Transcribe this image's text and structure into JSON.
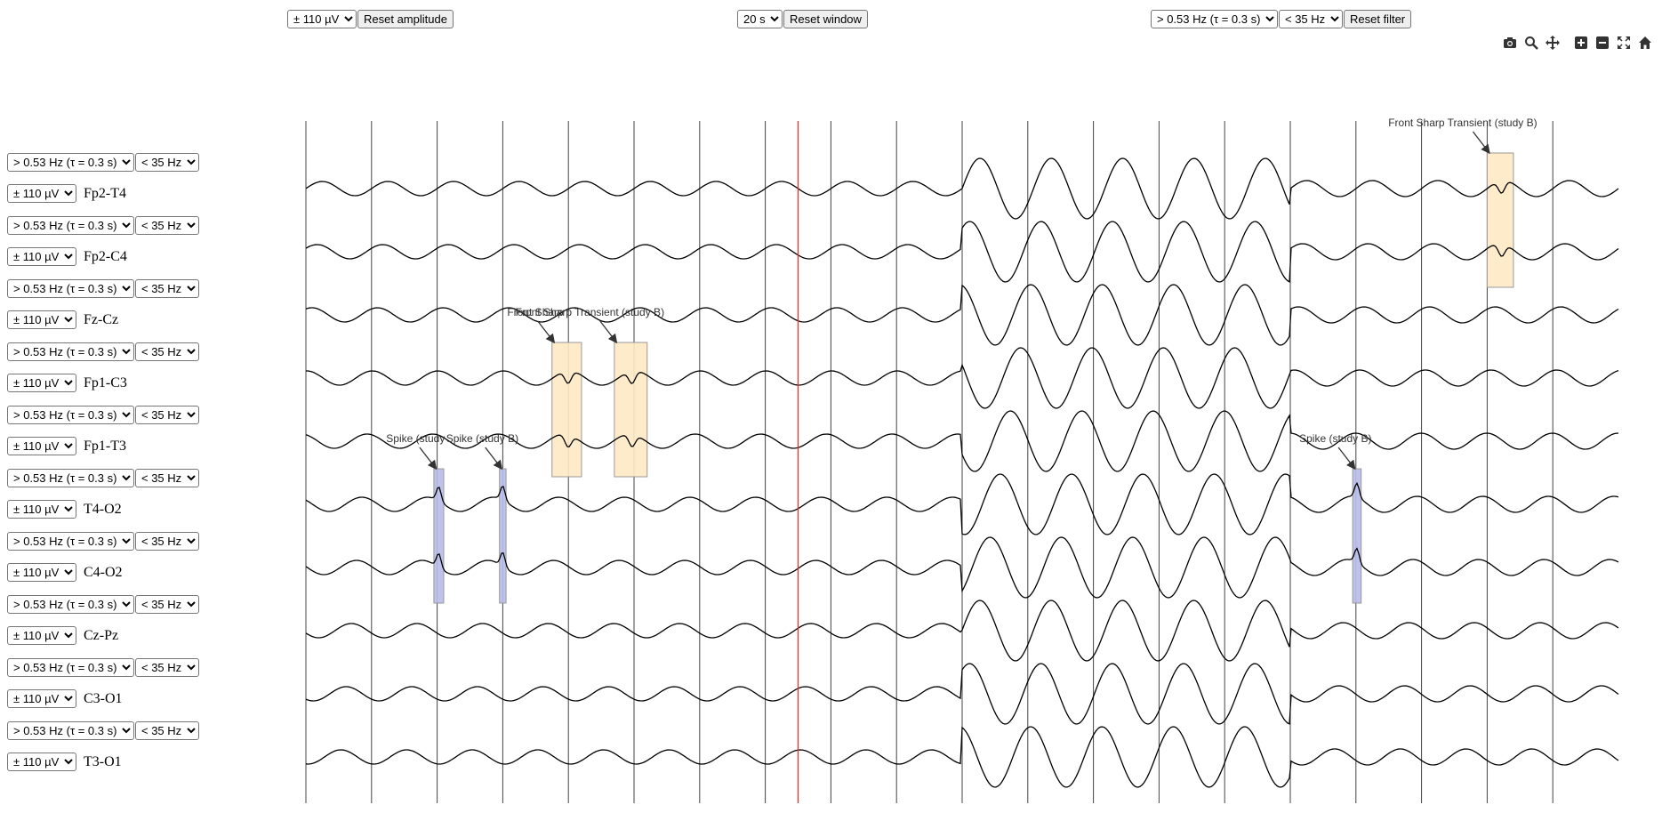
{
  "top_controls": {
    "amplitude": {
      "selected": "± 110 µV",
      "reset_label": "Reset amplitude"
    },
    "window": {
      "selected": "20 s",
      "reset_label": "Reset window"
    },
    "filter": {
      "highpass": "> 0.53 Hz (τ = 0.3 s)",
      "lowpass": "< 35 Hz",
      "reset_label": "Reset filter"
    }
  },
  "toolbar": [
    "camera-icon",
    "zoom-icon",
    "pan-icon",
    "zoom-in-icon",
    "zoom-out-icon",
    "autoscale-icon",
    "home-icon"
  ],
  "channels": [
    {
      "label": "Fp2-T4",
      "highpass": "> 0.53 Hz (τ = 0.3 s)",
      "lowpass": "< 35 Hz",
      "amplitude": "± 110 µV"
    },
    {
      "label": "Fp2-C4",
      "highpass": "> 0.53 Hz (τ = 0.3 s)",
      "lowpass": "< 35 Hz",
      "amplitude": "± 110 µV"
    },
    {
      "label": "Fz-Cz",
      "highpass": "> 0.53 Hz (τ = 0.3 s)",
      "lowpass": "< 35 Hz",
      "amplitude": "± 110 µV"
    },
    {
      "label": "Fp1-C3",
      "highpass": "> 0.53 Hz (τ = 0.3 s)",
      "lowpass": "< 35 Hz",
      "amplitude": "± 110 µV"
    },
    {
      "label": "Fp1-T3",
      "highpass": "> 0.53 Hz (τ = 0.3 s)",
      "lowpass": "< 35 Hz",
      "amplitude": "± 110 µV"
    },
    {
      "label": "T4-O2",
      "highpass": "> 0.53 Hz (τ = 0.3 s)",
      "lowpass": "< 35 Hz",
      "amplitude": "± 110 µV"
    },
    {
      "label": "C4-O2",
      "highpass": "> 0.53 Hz (τ = 0.3 s)",
      "lowpass": "< 35 Hz",
      "amplitude": "± 110 µV"
    },
    {
      "label": "Cz-Pz",
      "highpass": "> 0.53 Hz (τ = 0.3 s)",
      "lowpass": "< 35 Hz",
      "amplitude": "± 110 µV"
    },
    {
      "label": "C3-O1",
      "highpass": "> 0.53 Hz (τ = 0.3 s)",
      "lowpass": "< 35 Hz",
      "amplitude": "± 110 µV"
    },
    {
      "label": "T3-O1",
      "highpass": "> 0.53 Hz (τ = 0.3 s)",
      "lowpass": "< 35 Hz",
      "amplitude": "± 110 µV"
    }
  ],
  "annotations": [
    {
      "text": "Front Sharp Transient (study B)",
      "shown_text": "Front Sharp Transient (study B)",
      "type": "sharp-transient",
      "time_start": 18.0,
      "time_end": 18.4,
      "channels": [
        0,
        1
      ]
    },
    {
      "text": "Front Sharp Transient (study B)",
      "shown_text": "Front Sharp ",
      "type": "sharp-transient",
      "time_start": 3.75,
      "time_end": 4.2,
      "channels": [
        3,
        4
      ]
    },
    {
      "text": "Front Sharp Transient (study B)",
      "shown_text": "Front Sharp Transient (study B)",
      "type": "sharp-transient",
      "time_start": 4.7,
      "time_end": 5.2,
      "channels": [
        3,
        4
      ]
    },
    {
      "text": "Spike (study B)",
      "shown_text": "Spike (study ",
      "type": "spike",
      "time_start": 1.95,
      "time_end": 2.1,
      "channels": [
        5,
        6
      ]
    },
    {
      "text": "Spike (study B)",
      "shown_text": "Spike (study B)",
      "type": "spike",
      "time_start": 2.95,
      "time_end": 3.05,
      "channels": [
        5,
        6
      ]
    },
    {
      "text": "Spike (study B)",
      "shown_text": "Spike (study B)",
      "type": "spike",
      "time_start": 15.95,
      "time_end": 16.08,
      "channels": [
        5,
        6
      ]
    }
  ],
  "time_window": {
    "start": 0,
    "end": 20,
    "gridline_every_s": 1
  },
  "cursor_time": 7.5,
  "colors": {
    "trace": "#000000",
    "grid": "#444444",
    "cursor": "#e0302a",
    "sharp_transient_fill": "#fde9c4",
    "spike_fill": "#b8bdea",
    "annotation_border": "#999999"
  }
}
